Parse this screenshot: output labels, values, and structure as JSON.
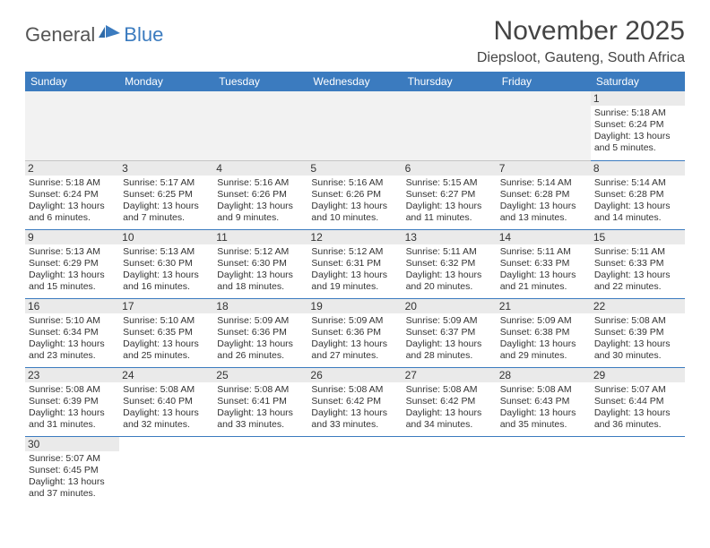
{
  "brand": {
    "general": "General",
    "blue": "Blue"
  },
  "title": "November 2025",
  "location": "Diepsloot, Gauteng, South Africa",
  "colors": {
    "header_bg": "#3b7bbf",
    "header_text": "#ffffff",
    "cell_border": "#3b7bbf",
    "daynum_bg": "#eaeaea",
    "prev_month_bg": "#f2f2f2",
    "text": "#333333"
  },
  "day_headers": [
    "Sunday",
    "Monday",
    "Tuesday",
    "Wednesday",
    "Thursday",
    "Friday",
    "Saturday"
  ],
  "weeks": [
    [
      {
        "num": "",
        "sunrise": "",
        "sunset": "",
        "daylight": "",
        "prev": true
      },
      {
        "num": "",
        "sunrise": "",
        "sunset": "",
        "daylight": "",
        "prev": true
      },
      {
        "num": "",
        "sunrise": "",
        "sunset": "",
        "daylight": "",
        "prev": true
      },
      {
        "num": "",
        "sunrise": "",
        "sunset": "",
        "daylight": "",
        "prev": true
      },
      {
        "num": "",
        "sunrise": "",
        "sunset": "",
        "daylight": "",
        "prev": true
      },
      {
        "num": "",
        "sunrise": "",
        "sunset": "",
        "daylight": "",
        "prev": true
      },
      {
        "num": "1",
        "sunrise": "Sunrise: 5:18 AM",
        "sunset": "Sunset: 6:24 PM",
        "daylight": "Daylight: 13 hours and 5 minutes."
      }
    ],
    [
      {
        "num": "2",
        "sunrise": "Sunrise: 5:18 AM",
        "sunset": "Sunset: 6:24 PM",
        "daylight": "Daylight: 13 hours and 6 minutes."
      },
      {
        "num": "3",
        "sunrise": "Sunrise: 5:17 AM",
        "sunset": "Sunset: 6:25 PM",
        "daylight": "Daylight: 13 hours and 7 minutes."
      },
      {
        "num": "4",
        "sunrise": "Sunrise: 5:16 AM",
        "sunset": "Sunset: 6:26 PM",
        "daylight": "Daylight: 13 hours and 9 minutes."
      },
      {
        "num": "5",
        "sunrise": "Sunrise: 5:16 AM",
        "sunset": "Sunset: 6:26 PM",
        "daylight": "Daylight: 13 hours and 10 minutes."
      },
      {
        "num": "6",
        "sunrise": "Sunrise: 5:15 AM",
        "sunset": "Sunset: 6:27 PM",
        "daylight": "Daylight: 13 hours and 11 minutes."
      },
      {
        "num": "7",
        "sunrise": "Sunrise: 5:14 AM",
        "sunset": "Sunset: 6:28 PM",
        "daylight": "Daylight: 13 hours and 13 minutes."
      },
      {
        "num": "8",
        "sunrise": "Sunrise: 5:14 AM",
        "sunset": "Sunset: 6:28 PM",
        "daylight": "Daylight: 13 hours and 14 minutes."
      }
    ],
    [
      {
        "num": "9",
        "sunrise": "Sunrise: 5:13 AM",
        "sunset": "Sunset: 6:29 PM",
        "daylight": "Daylight: 13 hours and 15 minutes."
      },
      {
        "num": "10",
        "sunrise": "Sunrise: 5:13 AM",
        "sunset": "Sunset: 6:30 PM",
        "daylight": "Daylight: 13 hours and 16 minutes."
      },
      {
        "num": "11",
        "sunrise": "Sunrise: 5:12 AM",
        "sunset": "Sunset: 6:30 PM",
        "daylight": "Daylight: 13 hours and 18 minutes."
      },
      {
        "num": "12",
        "sunrise": "Sunrise: 5:12 AM",
        "sunset": "Sunset: 6:31 PM",
        "daylight": "Daylight: 13 hours and 19 minutes."
      },
      {
        "num": "13",
        "sunrise": "Sunrise: 5:11 AM",
        "sunset": "Sunset: 6:32 PM",
        "daylight": "Daylight: 13 hours and 20 minutes."
      },
      {
        "num": "14",
        "sunrise": "Sunrise: 5:11 AM",
        "sunset": "Sunset: 6:33 PM",
        "daylight": "Daylight: 13 hours and 21 minutes."
      },
      {
        "num": "15",
        "sunrise": "Sunrise: 5:11 AM",
        "sunset": "Sunset: 6:33 PM",
        "daylight": "Daylight: 13 hours and 22 minutes."
      }
    ],
    [
      {
        "num": "16",
        "sunrise": "Sunrise: 5:10 AM",
        "sunset": "Sunset: 6:34 PM",
        "daylight": "Daylight: 13 hours and 23 minutes."
      },
      {
        "num": "17",
        "sunrise": "Sunrise: 5:10 AM",
        "sunset": "Sunset: 6:35 PM",
        "daylight": "Daylight: 13 hours and 25 minutes."
      },
      {
        "num": "18",
        "sunrise": "Sunrise: 5:09 AM",
        "sunset": "Sunset: 6:36 PM",
        "daylight": "Daylight: 13 hours and 26 minutes."
      },
      {
        "num": "19",
        "sunrise": "Sunrise: 5:09 AM",
        "sunset": "Sunset: 6:36 PM",
        "daylight": "Daylight: 13 hours and 27 minutes."
      },
      {
        "num": "20",
        "sunrise": "Sunrise: 5:09 AM",
        "sunset": "Sunset: 6:37 PM",
        "daylight": "Daylight: 13 hours and 28 minutes."
      },
      {
        "num": "21",
        "sunrise": "Sunrise: 5:09 AM",
        "sunset": "Sunset: 6:38 PM",
        "daylight": "Daylight: 13 hours and 29 minutes."
      },
      {
        "num": "22",
        "sunrise": "Sunrise: 5:08 AM",
        "sunset": "Sunset: 6:39 PM",
        "daylight": "Daylight: 13 hours and 30 minutes."
      }
    ],
    [
      {
        "num": "23",
        "sunrise": "Sunrise: 5:08 AM",
        "sunset": "Sunset: 6:39 PM",
        "daylight": "Daylight: 13 hours and 31 minutes."
      },
      {
        "num": "24",
        "sunrise": "Sunrise: 5:08 AM",
        "sunset": "Sunset: 6:40 PM",
        "daylight": "Daylight: 13 hours and 32 minutes."
      },
      {
        "num": "25",
        "sunrise": "Sunrise: 5:08 AM",
        "sunset": "Sunset: 6:41 PM",
        "daylight": "Daylight: 13 hours and 33 minutes."
      },
      {
        "num": "26",
        "sunrise": "Sunrise: 5:08 AM",
        "sunset": "Sunset: 6:42 PM",
        "daylight": "Daylight: 13 hours and 33 minutes."
      },
      {
        "num": "27",
        "sunrise": "Sunrise: 5:08 AM",
        "sunset": "Sunset: 6:42 PM",
        "daylight": "Daylight: 13 hours and 34 minutes."
      },
      {
        "num": "28",
        "sunrise": "Sunrise: 5:08 AM",
        "sunset": "Sunset: 6:43 PM",
        "daylight": "Daylight: 13 hours and 35 minutes."
      },
      {
        "num": "29",
        "sunrise": "Sunrise: 5:07 AM",
        "sunset": "Sunset: 6:44 PM",
        "daylight": "Daylight: 13 hours and 36 minutes."
      }
    ],
    [
      {
        "num": "30",
        "sunrise": "Sunrise: 5:07 AM",
        "sunset": "Sunset: 6:45 PM",
        "daylight": "Daylight: 13 hours and 37 minutes."
      },
      {
        "num": "",
        "sunrise": "",
        "sunset": "",
        "daylight": "",
        "empty": true
      },
      {
        "num": "",
        "sunrise": "",
        "sunset": "",
        "daylight": "",
        "empty": true
      },
      {
        "num": "",
        "sunrise": "",
        "sunset": "",
        "daylight": "",
        "empty": true
      },
      {
        "num": "",
        "sunrise": "",
        "sunset": "",
        "daylight": "",
        "empty": true
      },
      {
        "num": "",
        "sunrise": "",
        "sunset": "",
        "daylight": "",
        "empty": true
      },
      {
        "num": "",
        "sunrise": "",
        "sunset": "",
        "daylight": "",
        "empty": true
      }
    ]
  ]
}
